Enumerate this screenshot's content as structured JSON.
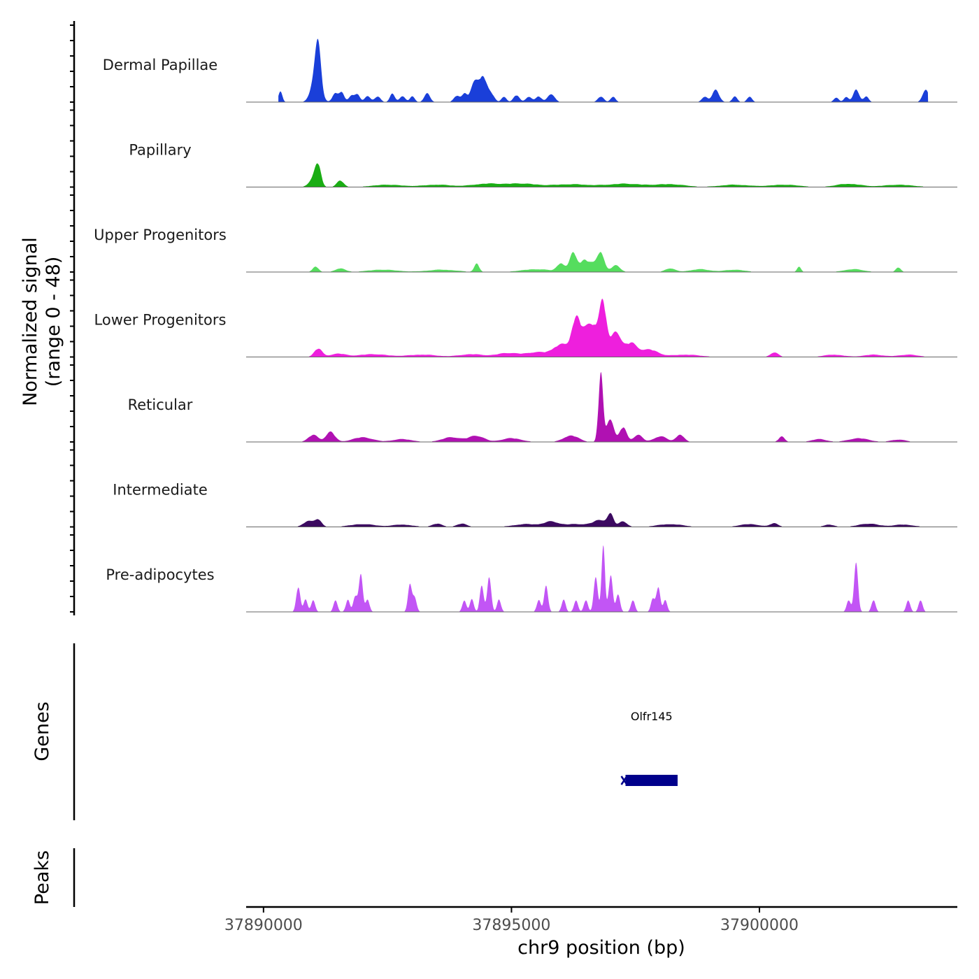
{
  "chart_data": {
    "type": "area",
    "title": "",
    "ylabel": "Normalized signal",
    "ylabel_range": "(range 0 - 48)",
    "yrange": [
      0,
      48
    ],
    "xlabel": "chr9 position (bp)",
    "xlim": [
      37889650,
      37903990
    ],
    "xticks": [
      37890000,
      37895000,
      37900000
    ],
    "xtick_labels": [
      "37890000",
      "37895000",
      "37900000"
    ],
    "region_start": 37890300,
    "region_end": 37903400,
    "series": [
      {
        "name": "Dermal Papillae",
        "color": "#1a3fd9",
        "peaks": [
          [
            37890340,
            0.22,
            40
          ],
          [
            37891050,
            0.55,
            90
          ],
          [
            37891100,
            0.78,
            60
          ],
          [
            37891450,
            0.2,
            60
          ],
          [
            37891580,
            0.18,
            50
          ],
          [
            37891780,
            0.15,
            60
          ],
          [
            37891900,
            0.15,
            50
          ],
          [
            37892100,
            0.12,
            60
          ],
          [
            37892300,
            0.12,
            60
          ],
          [
            37892600,
            0.18,
            50
          ],
          [
            37892800,
            0.12,
            60
          ],
          [
            37893000,
            0.12,
            50
          ],
          [
            37893300,
            0.18,
            60
          ],
          [
            37893900,
            0.14,
            60
          ],
          [
            37894050,
            0.18,
            50
          ],
          [
            37894250,
            0.38,
            80
          ],
          [
            37894430,
            0.55,
            80
          ],
          [
            37894600,
            0.15,
            60
          ],
          [
            37894850,
            0.12,
            50
          ],
          [
            37895100,
            0.15,
            60
          ],
          [
            37895350,
            0.12,
            60
          ],
          [
            37895550,
            0.12,
            60
          ],
          [
            37895800,
            0.18,
            70
          ],
          [
            37896800,
            0.12,
            60
          ],
          [
            37897050,
            0.12,
            50
          ],
          [
            37898900,
            0.12,
            60
          ],
          [
            37899120,
            0.25,
            70
          ],
          [
            37899500,
            0.12,
            50
          ],
          [
            37899800,
            0.12,
            50
          ],
          [
            37901550,
            0.1,
            50
          ],
          [
            37901750,
            0.1,
            50
          ],
          [
            37901950,
            0.28,
            60
          ],
          [
            37902150,
            0.12,
            50
          ],
          [
            37903350,
            0.28,
            60
          ]
        ]
      },
      {
        "name": "Papillary",
        "color": "#1aad14",
        "peaks": [
          [
            37891100,
            0.45,
            60
          ],
          [
            37891000,
            0.15,
            90
          ],
          [
            37891550,
            0.14,
            70
          ],
          [
            37892500,
            0.05,
            300
          ],
          [
            37893500,
            0.05,
            300
          ],
          [
            37894500,
            0.07,
            300
          ],
          [
            37895200,
            0.07,
            300
          ],
          [
            37896200,
            0.06,
            400
          ],
          [
            37897300,
            0.07,
            350
          ],
          [
            37898200,
            0.06,
            300
          ],
          [
            37899500,
            0.05,
            300
          ],
          [
            37900500,
            0.05,
            300
          ],
          [
            37901800,
            0.07,
            250
          ],
          [
            37902800,
            0.05,
            300
          ]
        ]
      },
      {
        "name": "Upper Progenitors",
        "color": "#55dd5e",
        "peaks": [
          [
            37891050,
            0.12,
            60
          ],
          [
            37891550,
            0.08,
            100
          ],
          [
            37892400,
            0.05,
            300
          ],
          [
            37893600,
            0.05,
            300
          ],
          [
            37894300,
            0.18,
            50
          ],
          [
            37895500,
            0.06,
            300
          ],
          [
            37896000,
            0.18,
            80
          ],
          [
            37896250,
            0.42,
            70
          ],
          [
            37896450,
            0.2,
            70
          ],
          [
            37896800,
            0.43,
            70
          ],
          [
            37896600,
            0.18,
            100
          ],
          [
            37897100,
            0.14,
            90
          ],
          [
            37898200,
            0.08,
            100
          ],
          [
            37898800,
            0.06,
            200
          ],
          [
            37899500,
            0.05,
            200
          ],
          [
            37900800,
            0.12,
            40
          ],
          [
            37901900,
            0.06,
            200
          ],
          [
            37902800,
            0.1,
            50
          ]
        ]
      },
      {
        "name": "Lower Progenitors",
        "color": "#ee1fdd",
        "peaks": [
          [
            37891100,
            0.18,
            80
          ],
          [
            37891500,
            0.07,
            150
          ],
          [
            37892200,
            0.06,
            300
          ],
          [
            37893200,
            0.05,
            300
          ],
          [
            37894200,
            0.06,
            250
          ],
          [
            37894900,
            0.08,
            200
          ],
          [
            37895500,
            0.1,
            250
          ],
          [
            37896000,
            0.25,
            160
          ],
          [
            37896300,
            0.75,
            90
          ],
          [
            37896500,
            0.42,
            120
          ],
          [
            37896850,
            1.05,
            70
          ],
          [
            37896680,
            0.55,
            110
          ],
          [
            37897100,
            0.55,
            90
          ],
          [
            37897400,
            0.3,
            140
          ],
          [
            37897800,
            0.15,
            160
          ],
          [
            37898500,
            0.05,
            300
          ],
          [
            37900300,
            0.1,
            80
          ],
          [
            37901500,
            0.05,
            200
          ],
          [
            37902300,
            0.05,
            200
          ],
          [
            37903000,
            0.05,
            200
          ]
        ]
      },
      {
        "name": "Reticular",
        "color": "#b011b2",
        "peaks": [
          [
            37891000,
            0.15,
            100
          ],
          [
            37891350,
            0.22,
            90
          ],
          [
            37892000,
            0.1,
            200
          ],
          [
            37892800,
            0.06,
            200
          ],
          [
            37893800,
            0.1,
            200
          ],
          [
            37894300,
            0.13,
            150
          ],
          [
            37895000,
            0.08,
            200
          ],
          [
            37896200,
            0.14,
            150
          ],
          [
            37896800,
            1.45,
            45
          ],
          [
            37896990,
            0.52,
            70
          ],
          [
            37897250,
            0.32,
            70
          ],
          [
            37897550,
            0.15,
            90
          ],
          [
            37898000,
            0.12,
            130
          ],
          [
            37898400,
            0.16,
            80
          ],
          [
            37900450,
            0.12,
            60
          ],
          [
            37901200,
            0.06,
            150
          ],
          [
            37902000,
            0.08,
            200
          ],
          [
            37902800,
            0.05,
            150
          ]
        ]
      },
      {
        "name": "Intermediate",
        "color": "#3c0a60",
        "peaks": [
          [
            37890900,
            0.12,
            100
          ],
          [
            37891100,
            0.16,
            70
          ],
          [
            37892000,
            0.06,
            250
          ],
          [
            37892800,
            0.05,
            200
          ],
          [
            37893500,
            0.07,
            100
          ],
          [
            37894000,
            0.07,
            100
          ],
          [
            37895300,
            0.06,
            250
          ],
          [
            37895800,
            0.1,
            150
          ],
          [
            37896300,
            0.06,
            250
          ],
          [
            37896800,
            0.14,
            150
          ],
          [
            37897000,
            0.22,
            60
          ],
          [
            37897250,
            0.12,
            80
          ],
          [
            37898200,
            0.06,
            250
          ],
          [
            37899800,
            0.06,
            200
          ],
          [
            37900300,
            0.08,
            80
          ],
          [
            37901400,
            0.05,
            100
          ],
          [
            37902200,
            0.07,
            200
          ],
          [
            37902900,
            0.05,
            200
          ]
        ]
      },
      {
        "name": "Pre-adipocytes",
        "color": "#c255f5",
        "peaks": [
          [
            37890700,
            0.55,
            40
          ],
          [
            37890850,
            0.26,
            40
          ],
          [
            37891000,
            0.26,
            40
          ],
          [
            37891450,
            0.26,
            40
          ],
          [
            37891700,
            0.26,
            40
          ],
          [
            37891850,
            0.35,
            40
          ],
          [
            37891960,
            0.8,
            40
          ],
          [
            37892100,
            0.26,
            40
          ],
          [
            37892950,
            0.55,
            40
          ],
          [
            37893050,
            0.3,
            40
          ],
          [
            37894050,
            0.26,
            40
          ],
          [
            37894200,
            0.26,
            40
          ],
          [
            37894400,
            0.55,
            40
          ],
          [
            37894550,
            0.8,
            40
          ],
          [
            37894750,
            0.26,
            40
          ],
          [
            37895550,
            0.26,
            40
          ],
          [
            37895700,
            0.55,
            40
          ],
          [
            37896050,
            0.26,
            40
          ],
          [
            37896300,
            0.26,
            40
          ],
          [
            37896500,
            0.26,
            40
          ],
          [
            37896700,
            0.8,
            40
          ],
          [
            37896850,
            1.35,
            35
          ],
          [
            37897000,
            0.8,
            40
          ],
          [
            37897150,
            0.4,
            40
          ],
          [
            37897450,
            0.26,
            40
          ],
          [
            37897850,
            0.26,
            40
          ],
          [
            37897960,
            0.55,
            40
          ],
          [
            37898100,
            0.26,
            40
          ],
          [
            37901800,
            0.26,
            40
          ],
          [
            37901950,
            1.05,
            40
          ],
          [
            37902300,
            0.26,
            40
          ],
          [
            37903000,
            0.26,
            40
          ],
          [
            37903250,
            0.26,
            40
          ]
        ]
      }
    ],
    "gene_track": {
      "label": "Genes",
      "genes": [
        {
          "name": "Olfr145",
          "start": 37897300,
          "end": 37898350,
          "color": "#00008b"
        }
      ]
    },
    "peaks_track": {
      "label": "Peaks"
    }
  }
}
